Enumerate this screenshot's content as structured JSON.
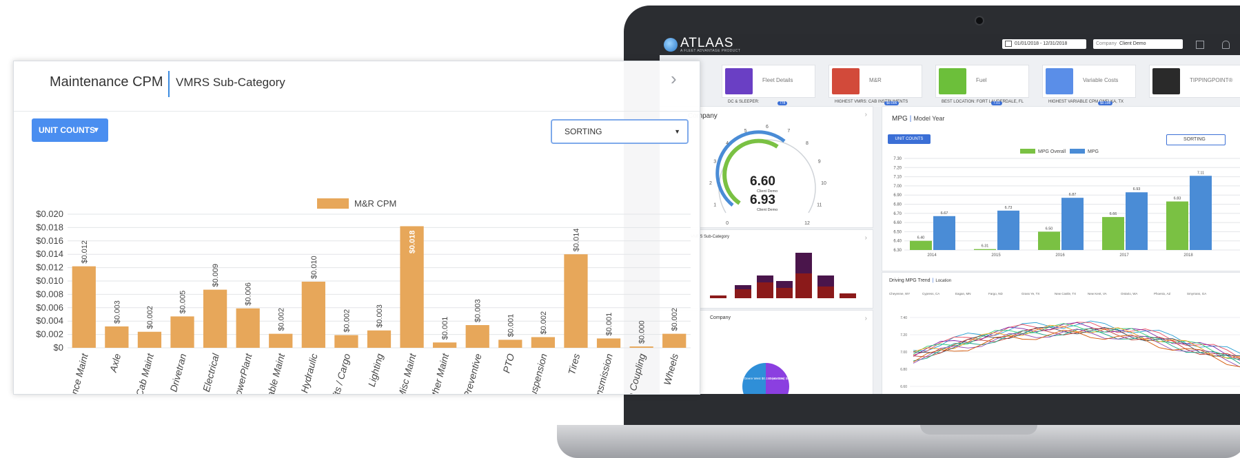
{
  "panel": {
    "title": "Maintenance CPM",
    "subtitle": "VMRS Sub-Category",
    "unit_counts_label": "UNIT COUNTS",
    "sorting_label": "SORTING"
  },
  "chart_data": {
    "type": "bar",
    "categories": [
      "Appearance Maint",
      "Axle",
      "Body / Cab Maint",
      "Drivetran",
      "Electrical",
      "Engine / PowerPlant",
      "Expendable Maint",
      "Hydraulic",
      "Lifts / Cargo",
      "Lighting",
      "Misc Maint",
      "Other Maint",
      "Preventive",
      "PTO",
      "Suspension",
      "Tires",
      "Transmission",
      "Vehicle Coupling",
      "Wheels"
    ],
    "series": [
      {
        "name": "M&R CPM",
        "color": "#e7a75a",
        "values": [
          0.0122,
          0.0032,
          0.0024,
          0.0047,
          0.0087,
          0.0059,
          0.0021,
          0.0099,
          0.0019,
          0.0026,
          0.0182,
          0.0008,
          0.0034,
          0.0012,
          0.0016,
          0.014,
          0.0014,
          0.0002,
          0.0021
        ]
      }
    ],
    "data_labels": [
      "$0.012",
      "$0.003",
      "$0.002",
      "$0.005",
      "$0.009",
      "$0.006",
      "$0.002",
      "$0.010",
      "$0.002",
      "$0.003",
      "$0.018",
      "$0.001",
      "$0.003",
      "$0.001",
      "$0.002",
      "$0.014",
      "$0.001",
      "$0.000",
      "$0.002"
    ],
    "y_ticks": [
      "$0",
      "$0.002",
      "$0.004",
      "$0.006",
      "$0.008",
      "$0.010",
      "$0.012",
      "$0.014",
      "$0.016",
      "$0.018",
      "$0.020"
    ],
    "ylim": [
      0,
      0.02
    ],
    "grid": true,
    "legend_placement": "top-center"
  },
  "screen": {
    "logo": "ATLAAS",
    "logo_tagline": "A FLEET ADVANTAGE PRODUCT",
    "date_range": "01/01/2018 - 12/31/2018",
    "company_key": "Company",
    "company_value": "Client Demo",
    "tiles": [
      {
        "label": "Fleet Details",
        "sub": "DC & SLEEPER:",
        "badge": "778",
        "color": "#6a3fc4"
      },
      {
        "label": "M&R",
        "sub": "HIGHEST VMRS: CAB INSTRUMENTS",
        "badge": "$0.006",
        "color": "#d24a3a"
      },
      {
        "label": "Fuel",
        "sub": "BEST LOCATION: FORT LAUDERDALE, FL",
        "badge": "7.01",
        "color": "#6cbf3a"
      },
      {
        "label": "Variable Costs",
        "sub": "HIGHEST VARIABLE CPM ONELKA, TX",
        "badge": "$0.198",
        "color": "#5a8ee8"
      },
      {
        "label": "TIPPINGPOINT®",
        "sub": "",
        "badge": "",
        "color": "#2a2a2a"
      }
    ],
    "gauge": {
      "title": "Company",
      "value1": "6.60",
      "value2": "6.93",
      "client_label": "Client Demo",
      "client_label2": "Client Demo",
      "ticks": [
        "0",
        "1",
        "2",
        "3",
        "4",
        "5",
        "6",
        "7",
        "8",
        "9",
        "10",
        "11",
        "12"
      ]
    },
    "stack_title": "VMRS Sub-Category",
    "pie_title": "Company",
    "pie_labels": [
      "Deere West $0.157 (41.03%)",
      "Deere East $0.225 (55.19%)"
    ],
    "mpg": {
      "title": "MPG",
      "subtitle": "Model Year",
      "unit_counts_label": "UNIT COUNTS",
      "sorting_label": "SORTING",
      "legend": [
        "MPG Overall",
        "MPG"
      ],
      "y_ticks": [
        "6.30",
        "6.40",
        "6.50",
        "6.60",
        "6.70",
        "6.80",
        "6.90",
        "7.00",
        "7.10",
        "7.20",
        "7.30"
      ],
      "categories": [
        "2014",
        "2015",
        "2016",
        "2017",
        "2018"
      ],
      "overall": [
        6.4,
        6.31,
        6.5,
        6.66,
        6.83
      ],
      "mpg": [
        6.67,
        6.73,
        6.87,
        6.93,
        7.11
      ],
      "labels_overall": [
        "6.40",
        "6.31",
        "6.50",
        "6.66",
        "6.83"
      ],
      "labels_mpg": [
        "6.67",
        "6.73",
        "6.87",
        "6.93",
        "7.11"
      ],
      "colors": {
        "overall": "#7ac143",
        "mpg": "#4a8cd6"
      }
    },
    "trend": {
      "title": "Driving MPG Trend",
      "subtitle": "Location",
      "legend": [
        "Cheyenne, WY",
        "Cypress, CA",
        "Eagan, MN",
        "Fargo, ND",
        "Grass Ye, TX",
        "New Castle, TX",
        "New Kent, VA",
        "Ontario, WA",
        "Phoenix, AZ",
        "Smyrrans, GA"
      ],
      "y_ticks": [
        "6.60",
        "6.80",
        "7.00",
        "7.20",
        "7.40"
      ]
    }
  }
}
